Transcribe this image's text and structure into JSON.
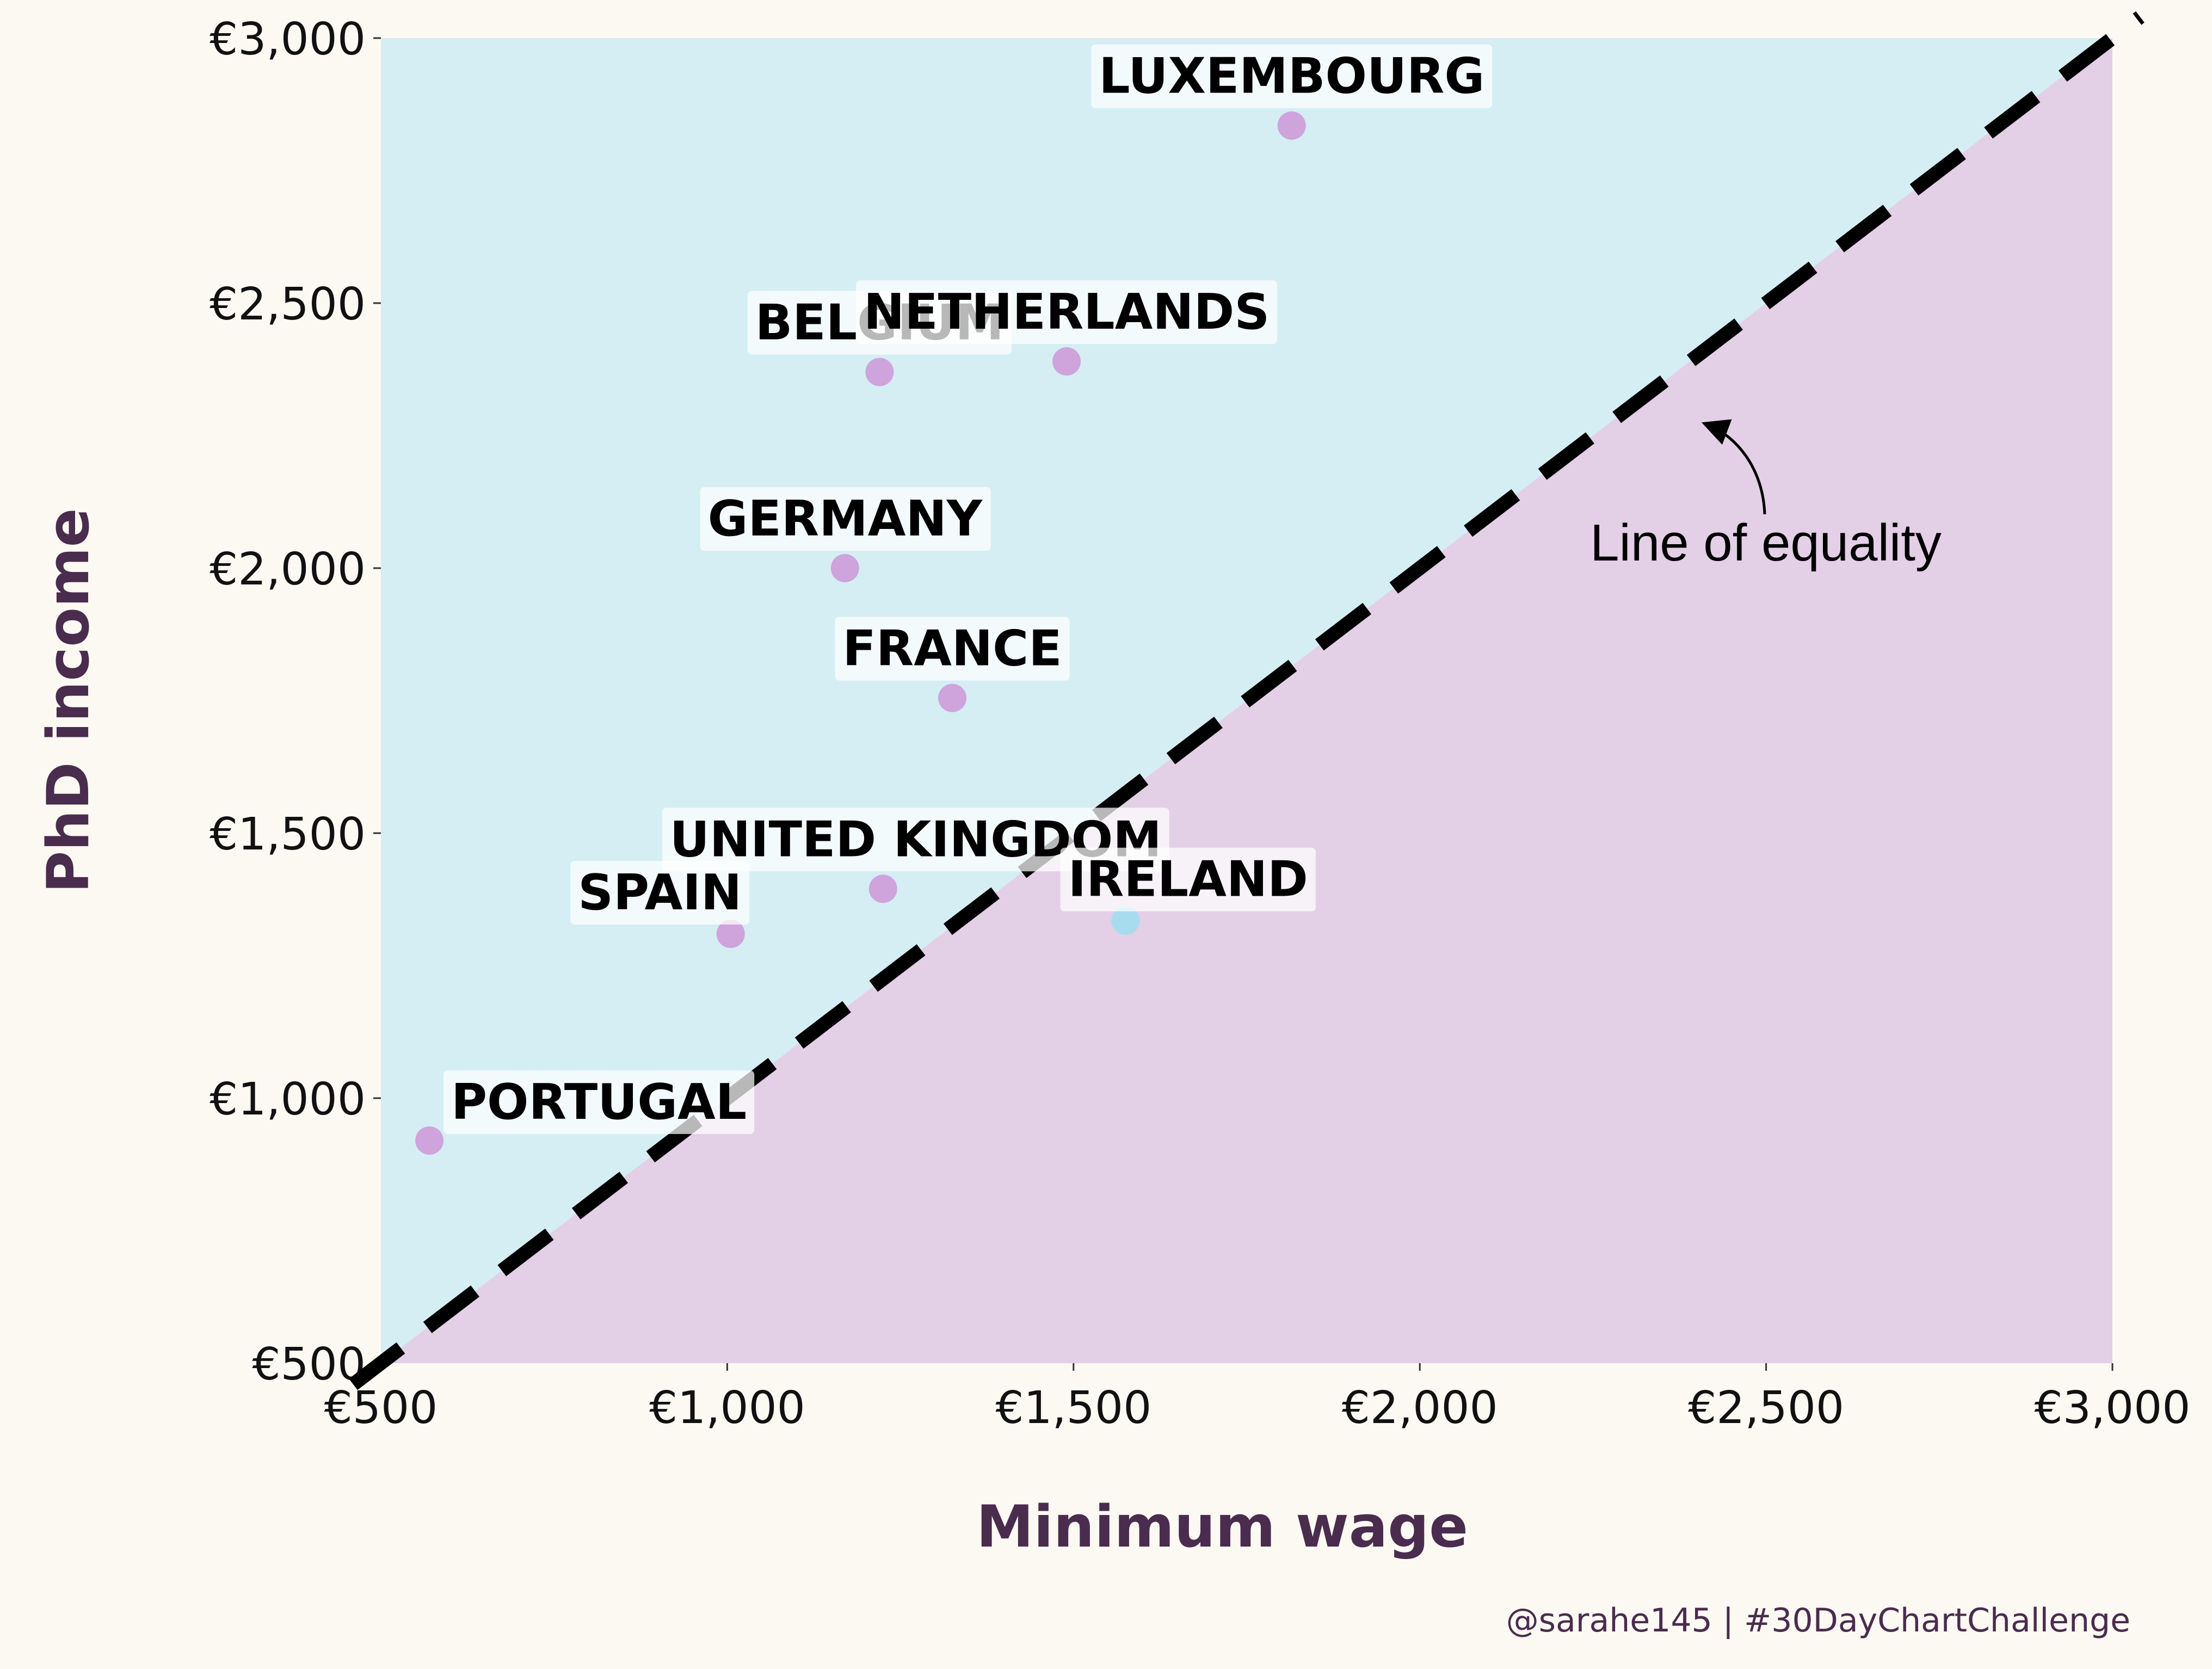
{
  "chart_data": {
    "type": "scatter",
    "title": "",
    "xlabel": "Minimum wage",
    "ylabel": "PhD income",
    "xlim": [
      500,
      3000
    ],
    "ylim": [
      500,
      3000
    ],
    "x_ticks": [
      500,
      1000,
      1500,
      2000,
      2500,
      3000
    ],
    "y_ticks": [
      500,
      1000,
      1500,
      2000,
      2500,
      3000
    ],
    "x_tick_labels": [
      "€500",
      "€1,000",
      "€1,500",
      "€2,000",
      "€2,500",
      "€3,000"
    ],
    "y_tick_labels": [
      "€500",
      "€1,000",
      "€1,500",
      "€2,000",
      "€2,500",
      "€3,000"
    ],
    "reference_line": {
      "type": "y=x",
      "style": "dashed",
      "color": "#000000"
    },
    "regions": {
      "above_line_color": "#d4eef4",
      "below_line_color": "#e3cfe6"
    },
    "colors": {
      "above_point": "#cfa3dc",
      "below_point": "#a7dcef",
      "background": "#fcf9f3",
      "axis_title": "#4a2c4e"
    },
    "points": [
      {
        "label": "LUXEMBOURG",
        "x": 1815,
        "y": 2835
      },
      {
        "label": "BELGIUM",
        "x": 1220,
        "y": 2370
      },
      {
        "label": "NETHERLANDS",
        "x": 1490,
        "y": 2390
      },
      {
        "label": "GERMANY",
        "x": 1170,
        "y": 2000
      },
      {
        "label": "FRANCE",
        "x": 1325,
        "y": 1755
      },
      {
        "label": "UNITED KINGDOM",
        "x": 1225,
        "y": 1395
      },
      {
        "label": "SPAIN",
        "x": 1005,
        "y": 1310
      },
      {
        "label": "IRELAND",
        "x": 1575,
        "y": 1335
      },
      {
        "label": "PORTUGAL",
        "x": 570,
        "y": 920
      }
    ],
    "annotations": [
      {
        "text": "Line of equality",
        "arrow_target": {
          "x": 2400,
          "y": 2300
        }
      }
    ],
    "legend": "none",
    "grid": false
  },
  "caption": "@sarahe145 | #30DayChartChallenge"
}
